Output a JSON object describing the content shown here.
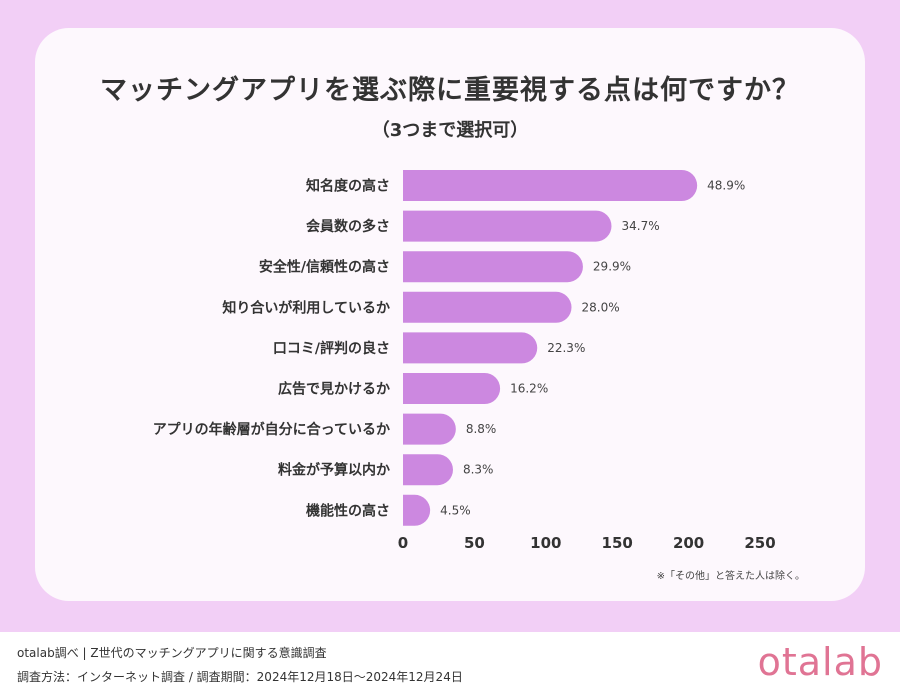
{
  "chart_data": {
    "type": "bar",
    "orientation": "horizontal",
    "title": "マッチングアプリを選ぶ際に重要視する点は何ですか？",
    "subtitle": "（3つまで選択可）",
    "categories": [
      "知名度の高さ",
      "会員数の多さ",
      "安全性/信頼性の高さ",
      "知り合いが利用しているか",
      "口コミ/評判の良さ",
      "広告で見かけるか",
      "アプリの年齢層が自分に合っているか",
      "料金が予算以内か",
      "機能性の高さ"
    ],
    "values": [
      206,
      146,
      126,
      118,
      94,
      68,
      37,
      35,
      19
    ],
    "data_labels": [
      "48.9%",
      "34.7%",
      "29.9%",
      "28.0%",
      "22.3%",
      "16.2%",
      "8.8%",
      "8.3%",
      "4.5%"
    ],
    "xlim": [
      0,
      250
    ],
    "xticks": [
      "0",
      "50",
      "100",
      "150",
      "200",
      "250"
    ],
    "grid": false,
    "bar_color": "#cc88e0"
  },
  "note": "※「その他」と答えた人は除く。",
  "footer": {
    "line1": "otalab調べ | Z世代のマッチングアプリに関する意識調査",
    "line2": "調査方法：インターネット調査 / 調査期間：2024年12月18日〜2024年12月24日",
    "logo": "otalab"
  }
}
